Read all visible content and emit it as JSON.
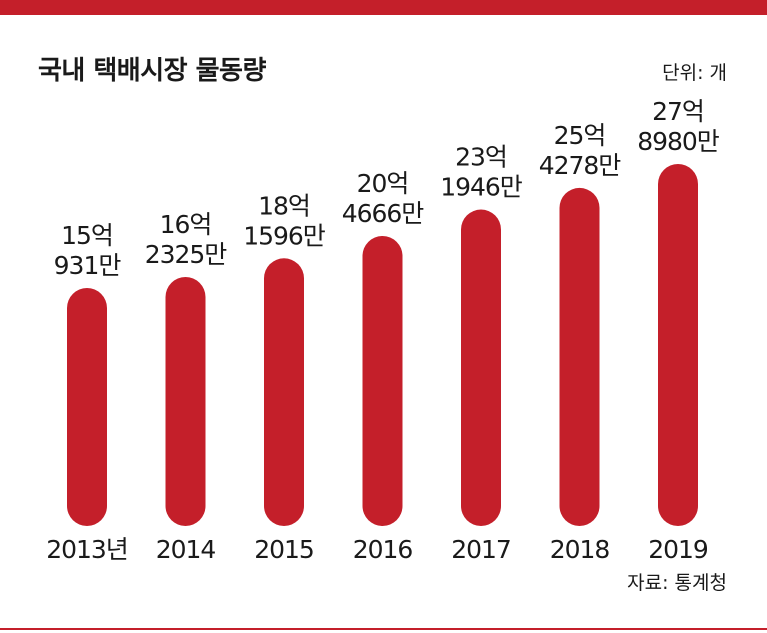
{
  "title": "국내 택배시장 물동량",
  "unit_label": "단위: 개",
  "source_label": "자료: 통계청",
  "colors": {
    "accent": "#c41f2a",
    "text": "#1a1a1a"
  },
  "chart_data": {
    "type": "bar",
    "title": "국내 택배시장 물동량",
    "categories": [
      "2013년",
      "2014",
      "2015",
      "2016",
      "2017",
      "2018",
      "2019"
    ],
    "values": [
      1509310000,
      1623250000,
      1815960000,
      2046660000,
      2319460000,
      2542780000,
      2789800000
    ],
    "value_labels": [
      [
        "15억",
        "931만"
      ],
      [
        "16억",
        "2325만"
      ],
      [
        "18억",
        "1596만"
      ],
      [
        "20억",
        "4666만"
      ],
      [
        "23억",
        "1946만"
      ],
      [
        "25억",
        "4278만"
      ],
      [
        "27억",
        "8980만"
      ]
    ],
    "ylim": [
      0,
      3000000000
    ],
    "grid": false
  }
}
